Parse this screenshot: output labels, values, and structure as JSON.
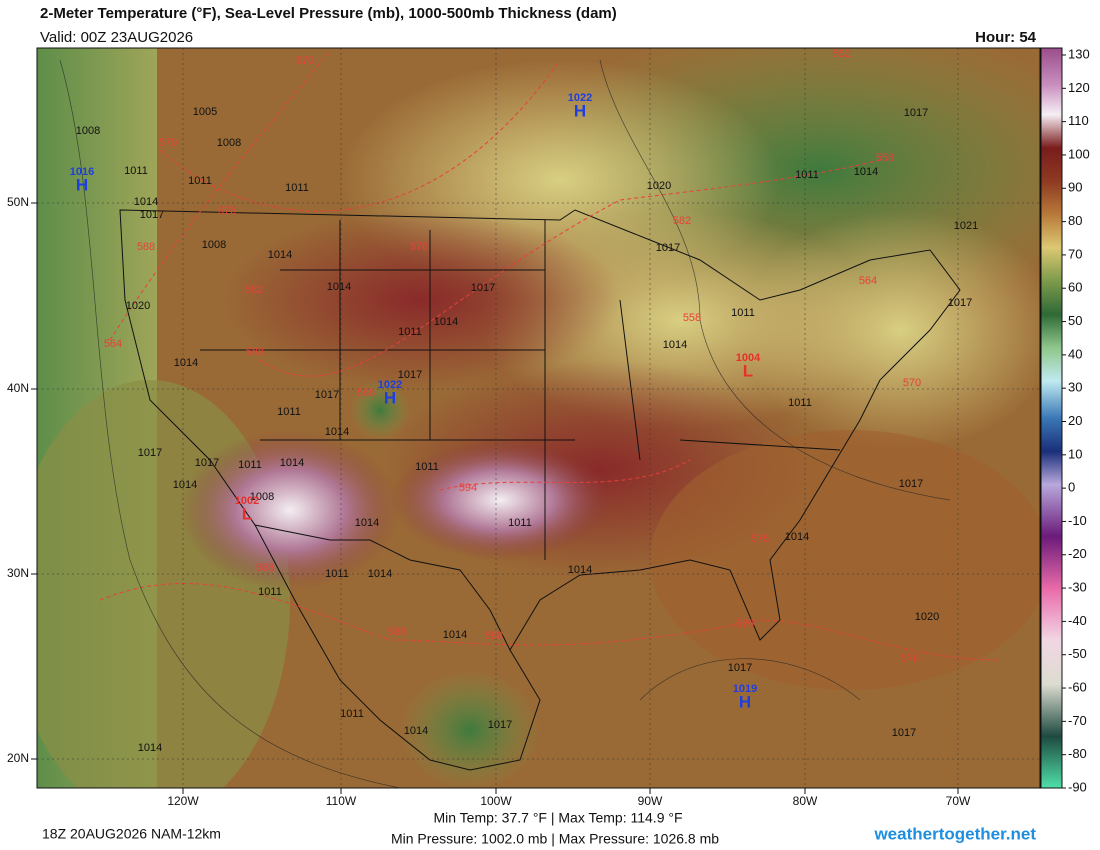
{
  "header": {
    "title": "2-Meter Temperature (°F), Sea-Level Pressure (mb), 1000-500mb Thickness (dam)",
    "valid": "Valid: 00Z 23AUG2026",
    "hour": "Hour: 54"
  },
  "map": {
    "lat_labels": [
      "50N",
      "40N",
      "30N",
      "20N"
    ],
    "lon_labels": [
      "120W",
      "110W",
      "100W",
      "90W",
      "80W",
      "70W"
    ],
    "isobar_labels": [
      "1005",
      "1008",
      "1008",
      "1011",
      "1011",
      "1011",
      "1014",
      "1017",
      "1008",
      "1014",
      "1020",
      "1014",
      "1017",
      "1011",
      "1014",
      "1014",
      "1017",
      "1017",
      "1011",
      "1014",
      "1017",
      "1017",
      "1011",
      "1014",
      "1011",
      "1014",
      "1008",
      "1014",
      "1011",
      "1011",
      "1014",
      "1014",
      "1011",
      "1014",
      "1011",
      "1014",
      "1017",
      "1014",
      "1020",
      "1017",
      "1014",
      "1017",
      "1021",
      "1017",
      "1011",
      "1014",
      "1011",
      "1014",
      "1017",
      "1020",
      "1017",
      "1017",
      "1011"
    ],
    "thickness_labels": [
      "570",
      "552",
      "570",
      "576",
      "558",
      "582",
      "588",
      "576",
      "582",
      "564",
      "558",
      "564",
      "588",
      "570",
      "588",
      "594",
      "576",
      "588",
      "576",
      "588",
      "588",
      "576"
    ],
    "centers": [
      {
        "letter": "H",
        "pressure": "1022"
      },
      {
        "letter": "H",
        "pressure": "1016"
      },
      {
        "letter": "H",
        "pressure": "1022"
      },
      {
        "letter": "L",
        "pressure": "1004"
      },
      {
        "letter": "L",
        "pressure": "1002"
      },
      {
        "letter": "H",
        "pressure": "1019"
      }
    ]
  },
  "colorbar": {
    "ticks": [
      130,
      120,
      110,
      100,
      90,
      80,
      70,
      60,
      50,
      40,
      30,
      20,
      10,
      0,
      -10,
      -20,
      -30,
      -40,
      -50,
      -60,
      -70,
      -80,
      -90
    ]
  },
  "footer": {
    "run": "18Z 20AUG2026 NAM-12km",
    "temp_range": "Min Temp: 37.7 °F | Max Temp: 114.9 °F",
    "pressure_range": "Min Pressure: 1002.0 mb | Max Pressure: 1026.8 mb",
    "site": "weathertogether.net"
  }
}
